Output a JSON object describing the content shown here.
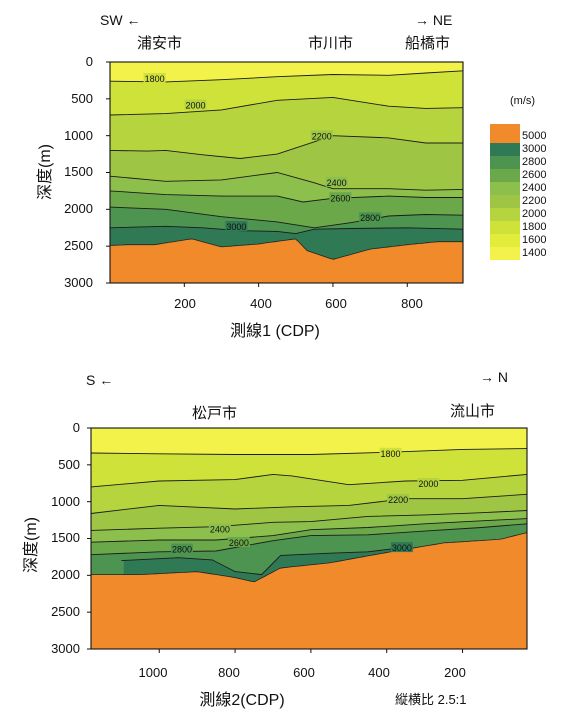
{
  "colors": {
    "basement": "#f08a2a",
    "v1400": "#f3f24a",
    "v1600": "#e2ec3a",
    "v1800": "#cfe23a",
    "v2000": "#b6d43e",
    "v2200": "#9ec644",
    "v2400": "#8cbf4c",
    "v2600": "#6aa84a",
    "v2800": "#4d9450",
    "v3000": "#2f7a55"
  },
  "legend": {
    "unit": "(m/s)",
    "labels": [
      "5000",
      "3000",
      "2800",
      "2600",
      "2400",
      "2200",
      "2000",
      "1800",
      "1600",
      "1400"
    ]
  },
  "chart_data": [
    {
      "type": "heatmap",
      "direction_left": "SW ←",
      "direction_right": "→ NE",
      "places": [
        "浦安市",
        "市川市",
        "船橋市"
      ],
      "ylabel": "深度(m)",
      "xlabel": "測線1 (CDP)",
      "x_ticks": [
        "200",
        "400",
        "600",
        "800"
      ],
      "y_ticks": [
        "0",
        "500",
        "1000",
        "1500",
        "2000",
        "2500",
        "3000"
      ],
      "xlim": [
        0,
        950
      ],
      "ylim": [
        3000,
        0
      ],
      "contour_labels": [
        "1800",
        "2000",
        "2200",
        "2400",
        "2600",
        "2800",
        "3000"
      ],
      "contours": [
        {
          "level": 1800,
          "x": [
            0,
            150,
            300,
            450,
            600,
            750,
            850,
            950
          ],
          "depth": [
            260,
            270,
            240,
            200,
            170,
            180,
            150,
            120
          ]
        },
        {
          "level": 2000,
          "x": [
            0,
            150,
            300,
            450,
            600,
            750,
            850,
            950
          ],
          "depth": [
            720,
            700,
            650,
            520,
            480,
            600,
            630,
            620
          ]
        },
        {
          "level": 2200,
          "x": [
            0,
            100,
            150,
            250,
            350,
            450,
            600,
            750,
            850,
            950
          ],
          "depth": [
            1200,
            1210,
            1200,
            1260,
            1310,
            1250,
            1000,
            1030,
            1100,
            1100
          ]
        },
        {
          "level": 2400,
          "x": [
            0,
            150,
            300,
            450,
            550,
            600,
            750,
            850,
            950
          ],
          "depth": [
            1550,
            1620,
            1600,
            1500,
            1640,
            1720,
            1720,
            1740,
            1730
          ]
        },
        {
          "level": 2600,
          "x": [
            0,
            150,
            300,
            450,
            520,
            600,
            750,
            850,
            950
          ],
          "depth": [
            1750,
            1800,
            1820,
            1820,
            1900,
            1850,
            1820,
            1840,
            1840
          ]
        },
        {
          "level": 2800,
          "x": [
            0,
            150,
            300,
            450,
            550,
            650,
            750,
            850,
            950
          ],
          "depth": [
            1970,
            2000,
            2100,
            2170,
            2250,
            2180,
            2090,
            2070,
            2080
          ]
        },
        {
          "level": 3000,
          "x": [
            0,
            150,
            250,
            350,
            450,
            500,
            550,
            650,
            800,
            950
          ],
          "depth": [
            2250,
            2230,
            2250,
            2290,
            2300,
            2330,
            2270,
            2260,
            2250,
            2270
          ]
        }
      ],
      "basement": {
        "x": [
          0,
          50,
          120,
          220,
          300,
          400,
          500,
          530,
          600,
          700,
          800,
          880,
          950
        ],
        "depth": [
          2490,
          2480,
          2480,
          2400,
          2510,
          2470,
          2400,
          2560,
          2680,
          2540,
          2480,
          2440,
          2440
        ]
      }
    },
    {
      "type": "heatmap",
      "direction_left": "S ←",
      "direction_right": "→ N",
      "places": [
        "松戸市",
        "流山市"
      ],
      "ylabel": "深度(m)",
      "xlabel": "測線2(CDP)",
      "aspect_note": "縦横比 2.5:1",
      "x_ticks": [
        "1000",
        "800",
        "600",
        "400",
        "200"
      ],
      "y_ticks": [
        "0",
        "500",
        "1000",
        "1500",
        "2000",
        "2500",
        "3000"
      ],
      "xlim": [
        1180,
        30
      ],
      "ylim": [
        3000,
        0
      ],
      "contour_labels": [
        "1800",
        "2000",
        "2200",
        "2400",
        "2600",
        "2800",
        "3000"
      ],
      "contours": [
        {
          "level": 1800,
          "x": [
            1180,
            1000,
            800,
            600,
            400,
            200,
            30
          ],
          "depth": [
            340,
            350,
            360,
            360,
            330,
            290,
            280
          ]
        },
        {
          "level": 2000,
          "x": [
            1180,
            1000,
            800,
            700,
            650,
            500,
            350,
            200,
            30
          ],
          "depth": [
            800,
            720,
            700,
            630,
            650,
            770,
            720,
            710,
            630
          ]
        },
        {
          "level": 2200,
          "x": [
            1180,
            1000,
            800,
            650,
            500,
            350,
            200,
            30
          ],
          "depth": [
            1160,
            1050,
            1100,
            1070,
            1050,
            960,
            960,
            900
          ]
        },
        {
          "level": 2400,
          "x": [
            1180,
            1000,
            850,
            700,
            600,
            450,
            300,
            150,
            30
          ],
          "depth": [
            1390,
            1360,
            1340,
            1280,
            1270,
            1200,
            1180,
            1150,
            1120
          ]
        },
        {
          "level": 2600,
          "x": [
            1180,
            1000,
            850,
            700,
            600,
            450,
            300,
            150,
            30
          ],
          "depth": [
            1550,
            1520,
            1520,
            1460,
            1380,
            1350,
            1300,
            1260,
            1230
          ]
        },
        {
          "level": 2800,
          "x": [
            1180,
            1000,
            850,
            700,
            600,
            450,
            300,
            150,
            30
          ],
          "depth": [
            1720,
            1680,
            1670,
            1530,
            1460,
            1450,
            1400,
            1350,
            1300
          ]
        },
        {
          "level": 3000,
          "x": [
            1100,
            950,
            860,
            800,
            730,
            680,
            550,
            450,
            350
          ],
          "depth": [
            1800,
            1760,
            1790,
            1950,
            1990,
            1730,
            1700,
            1680,
            1620
          ]
        }
      ],
      "basement": {
        "x": [
          1180,
          1050,
          900,
          800,
          750,
          680,
          550,
          400,
          250,
          100,
          30
        ],
        "depth": [
          1990,
          1990,
          1950,
          2030,
          2090,
          1900,
          1830,
          1690,
          1560,
          1510,
          1420
        ]
      }
    }
  ]
}
